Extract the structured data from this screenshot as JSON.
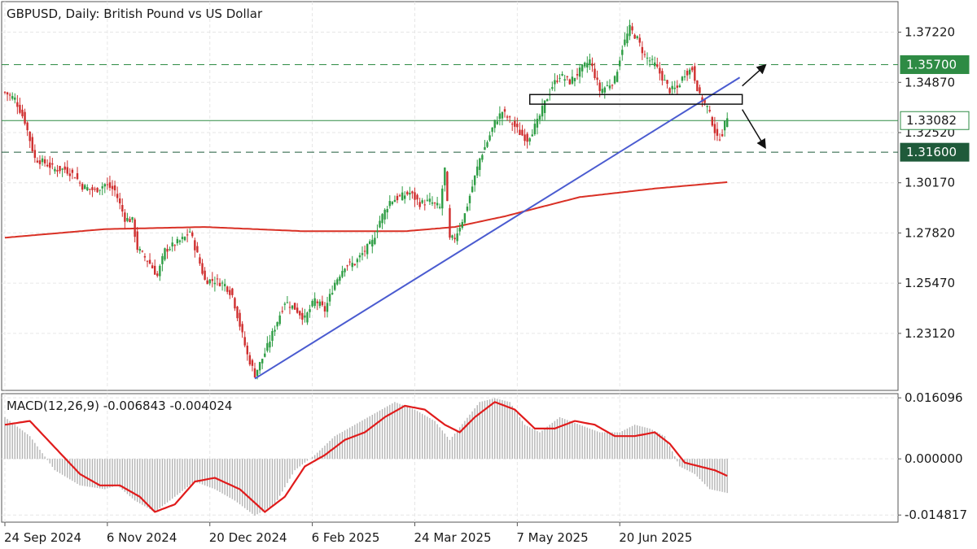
{
  "chart_data": {
    "type": "candlestick",
    "title": "GBPUSD, Daily:  British Pound vs US Dollar",
    "symbol": "GBPUSD",
    "timeframe": "Daily",
    "description": "British Pound vs US Dollar",
    "ylim": [
      1.2045,
      1.3865
    ],
    "price_ticks": [
      "1.37220",
      "1.34870",
      "1.32520",
      "1.30170",
      "1.27820",
      "1.25470",
      "1.23120"
    ],
    "date_ticks": [
      "24 Sep 2024",
      "6 Nov 2024",
      "20 Dec 2024",
      "6 Feb 2025",
      "24 Mar 2025",
      "7 May 2025",
      "20 Jun 2025"
    ],
    "current_price": "1.33082",
    "levels": [
      {
        "label": "1.35700",
        "value": 1.357,
        "color": "#2e8b44",
        "style": "dashed",
        "tag_style": "filled"
      },
      {
        "label": "1.31600",
        "value": 1.316,
        "color": "#1f5a3a",
        "style": "dashed",
        "tag_style": "filled-dark"
      },
      {
        "label": "1.33082",
        "value": 1.33082,
        "color": "#2e8b44",
        "style": "solid",
        "tag_style": "outline"
      }
    ],
    "colors": {
      "bull": "#2e9d44",
      "bear": "#cf2e2e",
      "ma": "#d93025",
      "trendline": "#4a5bd0",
      "macd_signal": "#e01b1b",
      "macd_hist": "#b4b4b4"
    },
    "anchors": [
      [
        0,
        1.344
      ],
      [
        4,
        1.341
      ],
      [
        8,
        1.3305
      ],
      [
        12,
        1.313
      ],
      [
        16,
        1.311
      ],
      [
        20,
        1.308
      ],
      [
        24,
        1.308
      ],
      [
        28,
        1.305
      ],
      [
        31,
        1.3
      ],
      [
        36,
        1.298
      ],
      [
        40,
        1.301
      ],
      [
        44,
        1.298
      ],
      [
        48,
        1.285
      ],
      [
        51,
        1.284
      ],
      [
        53,
        1.271
      ],
      [
        58,
        1.264
      ],
      [
        61,
        1.258
      ],
      [
        64,
        1.27
      ],
      [
        68,
        1.273
      ],
      [
        72,
        1.276
      ],
      [
        74,
        1.279
      ],
      [
        77,
        1.268
      ],
      [
        80,
        1.256
      ],
      [
        84,
        1.256
      ],
      [
        88,
        1.254
      ],
      [
        91,
        1.249
      ],
      [
        94,
        1.235
      ],
      [
        97,
        1.221
      ],
      [
        100,
        1.212
      ],
      [
        104,
        1.222
      ],
      [
        108,
        1.234
      ],
      [
        112,
        1.246
      ],
      [
        116,
        1.243
      ],
      [
        120,
        1.238
      ],
      [
        124,
        1.247
      ],
      [
        128,
        1.242
      ],
      [
        132,
        1.255
      ],
      [
        136,
        1.263
      ],
      [
        140,
        1.264
      ],
      [
        144,
        1.27
      ],
      [
        147,
        1.274
      ],
      [
        150,
        1.284
      ],
      [
        154,
        1.293
      ],
      [
        158,
        1.295
      ],
      [
        162,
        1.297
      ],
      [
        166,
        1.292
      ],
      [
        170,
        1.293
      ],
      [
        174,
        1.29
      ],
      [
        176,
        1.308
      ],
      [
        178,
        1.275
      ],
      [
        180,
        1.276
      ],
      [
        184,
        1.287
      ],
      [
        187,
        1.3
      ],
      [
        190,
        1.313
      ],
      [
        193,
        1.321
      ],
      [
        196,
        1.33
      ],
      [
        199,
        1.335
      ],
      [
        202,
        1.331
      ],
      [
        206,
        1.325
      ],
      [
        209,
        1.322
      ],
      [
        213,
        1.33
      ],
      [
        216,
        1.339
      ],
      [
        219,
        1.347
      ],
      [
        222,
        1.352
      ],
      [
        226,
        1.349
      ],
      [
        230,
        1.354
      ],
      [
        234,
        1.359
      ],
      [
        238,
        1.345
      ],
      [
        241,
        1.347
      ],
      [
        244,
        1.35
      ],
      [
        247,
        1.365
      ],
      [
        250,
        1.374
      ],
      [
        253,
        1.369
      ],
      [
        256,
        1.361
      ],
      [
        260,
        1.357
      ],
      [
        263,
        1.351
      ],
      [
        266,
        1.345
      ],
      [
        269,
        1.346
      ],
      [
        272,
        1.353
      ],
      [
        275,
        1.355
      ],
      [
        278,
        1.342
      ],
      [
        281,
        1.337
      ],
      [
        283,
        1.33
      ],
      [
        285,
        1.322
      ],
      [
        287,
        1.325
      ],
      [
        289,
        1.333
      ]
    ],
    "ma_points": [
      [
        0,
        1.276
      ],
      [
        40,
        1.28
      ],
      [
        80,
        1.281
      ],
      [
        120,
        1.279
      ],
      [
        160,
        1.279
      ],
      [
        180,
        1.281
      ],
      [
        200,
        1.286
      ],
      [
        230,
        1.295
      ],
      [
        260,
        1.299
      ],
      [
        289,
        1.302
      ]
    ],
    "trendline": {
      "from": [
        100,
        1.21
      ],
      "to": [
        294,
        1.351
      ]
    },
    "box": {
      "from_idx": 210,
      "to_idx": 295,
      "top": 1.343,
      "bottom": 1.3385
    },
    "arrows": [
      {
        "from": [
          295,
          1.347
        ],
        "to": [
          304,
          1.3565
        ]
      },
      {
        "from": [
          295,
          1.336
        ],
        "to": [
          304,
          1.3185
        ]
      }
    ],
    "n_bars": 290,
    "date_tick_indices": [
      0,
      41,
      82,
      123,
      164,
      205,
      246
    ],
    "macd": {
      "label": "MACD(12,26,9) -0.006843 -0.004024",
      "params": "12,26,9",
      "value": -0.006843,
      "signal_value": -0.004024,
      "ylim": [
        -0.0167,
        0.0172
      ],
      "ticks": [
        "0.016096",
        "0.000000",
        "-0.014817"
      ],
      "hist_anchors": [
        [
          0,
          0.011
        ],
        [
          10,
          0.006
        ],
        [
          20,
          -0.003
        ],
        [
          30,
          -0.007
        ],
        [
          40,
          -0.008
        ],
        [
          45,
          -0.007
        ],
        [
          52,
          -0.011
        ],
        [
          60,
          -0.014
        ],
        [
          68,
          -0.01
        ],
        [
          76,
          -0.006
        ],
        [
          84,
          -0.008
        ],
        [
          92,
          -0.011
        ],
        [
          100,
          -0.015
        ],
        [
          108,
          -0.012
        ],
        [
          116,
          -0.003
        ],
        [
          124,
          0.001
        ],
        [
          132,
          0.006
        ],
        [
          140,
          0.009
        ],
        [
          148,
          0.012
        ],
        [
          156,
          0.015
        ],
        [
          164,
          0.013
        ],
        [
          172,
          0.01
        ],
        [
          178,
          0.005
        ],
        [
          184,
          0.01
        ],
        [
          190,
          0.015
        ],
        [
          196,
          0.016
        ],
        [
          202,
          0.015
        ],
        [
          208,
          0.009
        ],
        [
          214,
          0.007
        ],
        [
          222,
          0.011
        ],
        [
          230,
          0.009
        ],
        [
          238,
          0.007
        ],
        [
          246,
          0.007
        ],
        [
          252,
          0.009
        ],
        [
          258,
          0.008
        ],
        [
          264,
          0.006
        ],
        [
          270,
          -0.002
        ],
        [
          276,
          -0.004
        ],
        [
          282,
          -0.008
        ],
        [
          289,
          -0.009
        ]
      ],
      "signal_anchors": [
        [
          0,
          0.009
        ],
        [
          10,
          0.01
        ],
        [
          20,
          0.003
        ],
        [
          30,
          -0.004
        ],
        [
          38,
          -0.007
        ],
        [
          46,
          -0.007
        ],
        [
          54,
          -0.01
        ],
        [
          60,
          -0.014
        ],
        [
          68,
          -0.012
        ],
        [
          76,
          -0.006
        ],
        [
          84,
          -0.005
        ],
        [
          94,
          -0.008
        ],
        [
          104,
          -0.014
        ],
        [
          112,
          -0.01
        ],
        [
          120,
          -0.002
        ],
        [
          128,
          0.001
        ],
        [
          136,
          0.005
        ],
        [
          144,
          0.007
        ],
        [
          152,
          0.011
        ],
        [
          160,
          0.014
        ],
        [
          168,
          0.013
        ],
        [
          176,
          0.009
        ],
        [
          182,
          0.007
        ],
        [
          188,
          0.011
        ],
        [
          196,
          0.015
        ],
        [
          204,
          0.013
        ],
        [
          212,
          0.008
        ],
        [
          220,
          0.008
        ],
        [
          228,
          0.01
        ],
        [
          236,
          0.009
        ],
        [
          244,
          0.006
        ],
        [
          252,
          0.006
        ],
        [
          260,
          0.007
        ],
        [
          266,
          0.004
        ],
        [
          272,
          -0.001
        ],
        [
          278,
          -0.002
        ],
        [
          284,
          -0.003
        ],
        [
          289,
          -0.0045
        ]
      ]
    }
  }
}
